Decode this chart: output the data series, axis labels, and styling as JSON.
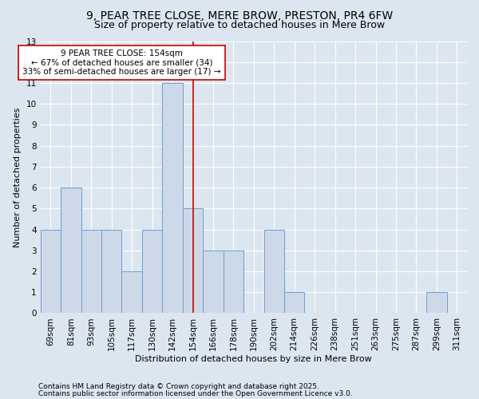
{
  "title": "9, PEAR TREE CLOSE, MERE BROW, PRESTON, PR4 6FW",
  "subtitle": "Size of property relative to detached houses in Mere Brow",
  "xlabel": "Distribution of detached houses by size in Mere Brow",
  "ylabel": "Number of detached properties",
  "categories": [
    "69sqm",
    "81sqm",
    "93sqm",
    "105sqm",
    "117sqm",
    "130sqm",
    "142sqm",
    "154sqm",
    "166sqm",
    "178sqm",
    "190sqm",
    "202sqm",
    "214sqm",
    "226sqm",
    "238sqm",
    "251sqm",
    "263sqm",
    "275sqm",
    "287sqm",
    "299sqm",
    "311sqm"
  ],
  "values": [
    4,
    6,
    4,
    4,
    2,
    4,
    11,
    5,
    3,
    3,
    0,
    4,
    1,
    0,
    0,
    0,
    0,
    0,
    0,
    1,
    0
  ],
  "bar_color": "#cdd9e8",
  "bar_edge_color": "#6b9fd4",
  "highlight_bar_index": 7,
  "highlight_line_color": "#cc0000",
  "annotation_line1": "9 PEAR TREE CLOSE: 154sqm",
  "annotation_line2": "← 67% of detached houses are smaller (34)",
  "annotation_line3": "33% of semi-detached houses are larger (17) →",
  "annotation_box_color": "#ffffff",
  "annotation_box_edge": "#cc0000",
  "ylim": [
    0,
    13
  ],
  "yticks": [
    0,
    1,
    2,
    3,
    4,
    5,
    6,
    7,
    8,
    9,
    10,
    11,
    12,
    13
  ],
  "bg_color": "#dce6f0",
  "grid_color": "#ffffff",
  "footer1": "Contains HM Land Registry data © Crown copyright and database right 2025.",
  "footer2": "Contains public sector information licensed under the Open Government Licence v3.0.",
  "title_fontsize": 10,
  "subtitle_fontsize": 9,
  "axis_label_fontsize": 8,
  "tick_fontsize": 7.5,
  "annotation_fontsize": 7.5,
  "footer_fontsize": 6.5
}
